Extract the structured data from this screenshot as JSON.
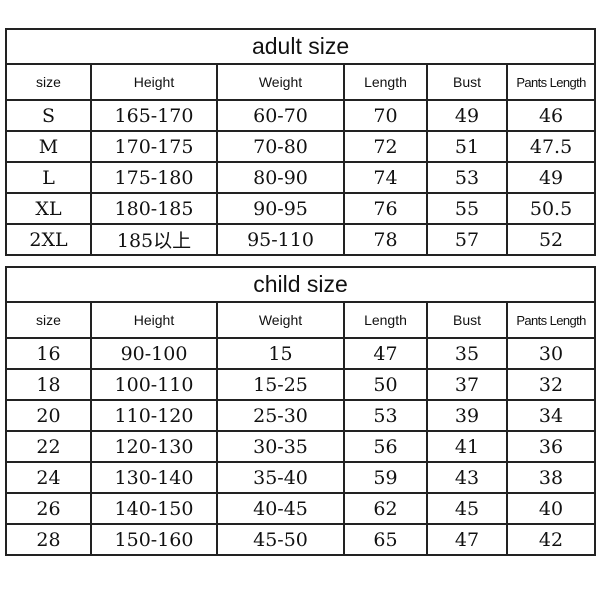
{
  "adult": {
    "title": "adult size",
    "headers": [
      "size",
      "Height",
      "Weight",
      "Length",
      "Bust",
      "Pants Length"
    ],
    "rows": [
      [
        "S",
        "165-170",
        "60-70",
        "70",
        "49",
        "46"
      ],
      [
        "M",
        "170-175",
        "70-80",
        "72",
        "51",
        "47.5"
      ],
      [
        "L",
        "175-180",
        "80-90",
        "74",
        "53",
        "49"
      ],
      [
        "XL",
        "180-185",
        "90-95",
        "76",
        "55",
        "50.5"
      ],
      [
        "2XL",
        "185以上",
        "95-110",
        "78",
        "57",
        "52"
      ]
    ]
  },
  "child": {
    "title": "child size",
    "headers": [
      "size",
      "Height",
      "Weight",
      "Length",
      "Bust",
      "Pants Length"
    ],
    "rows": [
      [
        "16",
        "90-100",
        "15",
        "47",
        "35",
        "30"
      ],
      [
        "18",
        "100-110",
        "15-25",
        "50",
        "37",
        "32"
      ],
      [
        "20",
        "110-120",
        "25-30",
        "53",
        "39",
        "34"
      ],
      [
        "22",
        "120-130",
        "30-35",
        "56",
        "41",
        "36"
      ],
      [
        "24",
        "130-140",
        "35-40",
        "59",
        "43",
        "38"
      ],
      [
        "26",
        "140-150",
        "40-45",
        "62",
        "45",
        "40"
      ],
      [
        "28",
        "150-160",
        "45-50",
        "65",
        "47",
        "42"
      ]
    ]
  }
}
